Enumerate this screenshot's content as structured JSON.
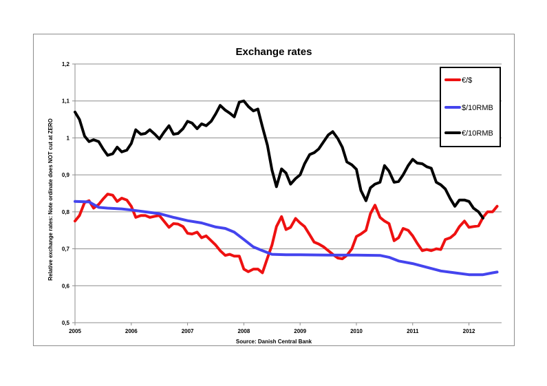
{
  "chart_data": {
    "type": "line",
    "title": "Exchange rates",
    "xlabel": "Source: Danish Central Bank",
    "ylabel": "Relative exchange rates: Note ordinate does NOT cut at ZERO",
    "xlim": [
      2005.0,
      2012.58
    ],
    "ylim": [
      0.5,
      1.2
    ],
    "grid": true,
    "legend_position": "top-right",
    "x_ticks": [
      2005,
      2006,
      2007,
      2008,
      2009,
      2010,
      2011,
      2012
    ],
    "x_tick_labels": [
      "2005",
      "2006",
      "2007",
      "2008",
      "2009",
      "2010",
      "2011",
      "2012"
    ],
    "y_ticks": [
      0.5,
      0.6,
      0.7,
      0.8,
      0.9,
      1.0,
      1.1,
      1.2
    ],
    "y_tick_labels": [
      "0,5",
      "0,6",
      "0,7",
      "0,8",
      "0,9",
      "1",
      "1,1",
      "1,2"
    ],
    "series": [
      {
        "name": "€/$",
        "color": "#ee1111",
        "points": [
          [
            2005.0,
            0.775
          ],
          [
            2005.08,
            0.79
          ],
          [
            2005.17,
            0.825
          ],
          [
            2005.25,
            0.83
          ],
          [
            2005.33,
            0.81
          ],
          [
            2005.42,
            0.82
          ],
          [
            2005.5,
            0.835
          ],
          [
            2005.58,
            0.848
          ],
          [
            2005.67,
            0.845
          ],
          [
            2005.75,
            0.828
          ],
          [
            2005.83,
            0.837
          ],
          [
            2005.92,
            0.832
          ],
          [
            2006.0,
            0.815
          ],
          [
            2006.08,
            0.785
          ],
          [
            2006.17,
            0.79
          ],
          [
            2006.25,
            0.79
          ],
          [
            2006.33,
            0.785
          ],
          [
            2006.42,
            0.788
          ],
          [
            2006.5,
            0.79
          ],
          [
            2006.58,
            0.775
          ],
          [
            2006.67,
            0.758
          ],
          [
            2006.75,
            0.768
          ],
          [
            2006.83,
            0.767
          ],
          [
            2006.92,
            0.76
          ],
          [
            2007.0,
            0.742
          ],
          [
            2007.08,
            0.74
          ],
          [
            2007.17,
            0.745
          ],
          [
            2007.25,
            0.73
          ],
          [
            2007.33,
            0.735
          ],
          [
            2007.42,
            0.722
          ],
          [
            2007.5,
            0.71
          ],
          [
            2007.58,
            0.695
          ],
          [
            2007.67,
            0.682
          ],
          [
            2007.75,
            0.685
          ],
          [
            2007.83,
            0.68
          ],
          [
            2007.92,
            0.68
          ],
          [
            2008.0,
            0.645
          ],
          [
            2008.08,
            0.638
          ],
          [
            2008.17,
            0.645
          ],
          [
            2008.25,
            0.645
          ],
          [
            2008.33,
            0.635
          ],
          [
            2008.42,
            0.675
          ],
          [
            2008.5,
            0.71
          ],
          [
            2008.58,
            0.76
          ],
          [
            2008.67,
            0.787
          ],
          [
            2008.75,
            0.752
          ],
          [
            2008.83,
            0.758
          ],
          [
            2008.92,
            0.782
          ],
          [
            2009.0,
            0.77
          ],
          [
            2009.08,
            0.76
          ],
          [
            2009.17,
            0.738
          ],
          [
            2009.25,
            0.718
          ],
          [
            2009.33,
            0.713
          ],
          [
            2009.42,
            0.705
          ],
          [
            2009.5,
            0.695
          ],
          [
            2009.58,
            0.685
          ],
          [
            2009.67,
            0.675
          ],
          [
            2009.75,
            0.673
          ],
          [
            2009.83,
            0.682
          ],
          [
            2009.92,
            0.7
          ],
          [
            2010.0,
            0.733
          ],
          [
            2010.08,
            0.74
          ],
          [
            2010.17,
            0.75
          ],
          [
            2010.25,
            0.795
          ],
          [
            2010.33,
            0.818
          ],
          [
            2010.42,
            0.785
          ],
          [
            2010.5,
            0.775
          ],
          [
            2010.58,
            0.768
          ],
          [
            2010.67,
            0.722
          ],
          [
            2010.75,
            0.73
          ],
          [
            2010.83,
            0.755
          ],
          [
            2010.92,
            0.75
          ],
          [
            2011.0,
            0.735
          ],
          [
            2011.08,
            0.715
          ],
          [
            2011.17,
            0.695
          ],
          [
            2011.25,
            0.698
          ],
          [
            2011.33,
            0.695
          ],
          [
            2011.42,
            0.7
          ],
          [
            2011.5,
            0.698
          ],
          [
            2011.58,
            0.725
          ],
          [
            2011.67,
            0.73
          ],
          [
            2011.75,
            0.74
          ],
          [
            2011.83,
            0.76
          ],
          [
            2011.92,
            0.775
          ],
          [
            2012.0,
            0.758
          ],
          [
            2012.08,
            0.76
          ],
          [
            2012.17,
            0.762
          ],
          [
            2012.25,
            0.785
          ],
          [
            2012.33,
            0.8
          ],
          [
            2012.42,
            0.8
          ],
          [
            2012.5,
            0.815
          ]
        ]
      },
      {
        "name": "$/10RMB",
        "color": "#4444ee",
        "points": [
          [
            2005.0,
            0.828
          ],
          [
            2005.25,
            0.827
          ],
          [
            2005.42,
            0.812
          ],
          [
            2005.58,
            0.81
          ],
          [
            2005.83,
            0.808
          ],
          [
            2006.0,
            0.805
          ],
          [
            2006.25,
            0.8
          ],
          [
            2006.5,
            0.795
          ],
          [
            2006.75,
            0.785
          ],
          [
            2007.0,
            0.776
          ],
          [
            2007.25,
            0.77
          ],
          [
            2007.5,
            0.759
          ],
          [
            2007.67,
            0.755
          ],
          [
            2007.83,
            0.745
          ],
          [
            2008.0,
            0.725
          ],
          [
            2008.17,
            0.705
          ],
          [
            2008.33,
            0.695
          ],
          [
            2008.5,
            0.685
          ],
          [
            2008.75,
            0.684
          ],
          [
            2009.0,
            0.684
          ],
          [
            2009.5,
            0.683
          ],
          [
            2010.0,
            0.683
          ],
          [
            2010.42,
            0.682
          ],
          [
            2010.58,
            0.677
          ],
          [
            2010.75,
            0.667
          ],
          [
            2011.0,
            0.66
          ],
          [
            2011.25,
            0.65
          ],
          [
            2011.5,
            0.64
          ],
          [
            2011.75,
            0.635
          ],
          [
            2012.0,
            0.63
          ],
          [
            2012.25,
            0.63
          ],
          [
            2012.42,
            0.635
          ],
          [
            2012.5,
            0.637
          ]
        ]
      },
      {
        "name": "€/10RMB",
        "color": "#000000",
        "points": [
          [
            2005.0,
            1.07
          ],
          [
            2005.08,
            1.05
          ],
          [
            2005.17,
            1.005
          ],
          [
            2005.25,
            0.99
          ],
          [
            2005.33,
            0.995
          ],
          [
            2005.42,
            0.99
          ],
          [
            2005.5,
            0.97
          ],
          [
            2005.58,
            0.953
          ],
          [
            2005.67,
            0.957
          ],
          [
            2005.75,
            0.975
          ],
          [
            2005.83,
            0.962
          ],
          [
            2005.92,
            0.967
          ],
          [
            2006.0,
            0.985
          ],
          [
            2006.08,
            1.022
          ],
          [
            2006.17,
            1.01
          ],
          [
            2006.25,
            1.012
          ],
          [
            2006.33,
            1.022
          ],
          [
            2006.42,
            1.01
          ],
          [
            2006.5,
            0.997
          ],
          [
            2006.58,
            1.015
          ],
          [
            2006.67,
            1.033
          ],
          [
            2006.75,
            1.01
          ],
          [
            2006.83,
            1.012
          ],
          [
            2006.92,
            1.025
          ],
          [
            2007.0,
            1.045
          ],
          [
            2007.08,
            1.04
          ],
          [
            2007.17,
            1.025
          ],
          [
            2007.25,
            1.038
          ],
          [
            2007.33,
            1.033
          ],
          [
            2007.42,
            1.045
          ],
          [
            2007.5,
            1.065
          ],
          [
            2007.58,
            1.088
          ],
          [
            2007.67,
            1.075
          ],
          [
            2007.75,
            1.067
          ],
          [
            2007.83,
            1.057
          ],
          [
            2007.92,
            1.097
          ],
          [
            2008.0,
            1.1
          ],
          [
            2008.08,
            1.085
          ],
          [
            2008.17,
            1.073
          ],
          [
            2008.25,
            1.078
          ],
          [
            2008.33,
            1.03
          ],
          [
            2008.42,
            0.98
          ],
          [
            2008.5,
            0.913
          ],
          [
            2008.58,
            0.868
          ],
          [
            2008.67,
            0.916
          ],
          [
            2008.75,
            0.905
          ],
          [
            2008.83,
            0.875
          ],
          [
            2008.92,
            0.89
          ],
          [
            2009.0,
            0.9
          ],
          [
            2009.08,
            0.93
          ],
          [
            2009.17,
            0.955
          ],
          [
            2009.25,
            0.96
          ],
          [
            2009.33,
            0.97
          ],
          [
            2009.42,
            0.99
          ],
          [
            2009.5,
            1.008
          ],
          [
            2009.58,
            1.017
          ],
          [
            2009.67,
            0.998
          ],
          [
            2009.75,
            0.975
          ],
          [
            2009.83,
            0.935
          ],
          [
            2009.92,
            0.927
          ],
          [
            2010.0,
            0.915
          ],
          [
            2010.08,
            0.858
          ],
          [
            2010.17,
            0.83
          ],
          [
            2010.25,
            0.865
          ],
          [
            2010.33,
            0.875
          ],
          [
            2010.42,
            0.88
          ],
          [
            2010.5,
            0.925
          ],
          [
            2010.58,
            0.91
          ],
          [
            2010.67,
            0.88
          ],
          [
            2010.75,
            0.882
          ],
          [
            2010.83,
            0.9
          ],
          [
            2010.92,
            0.925
          ],
          [
            2011.0,
            0.942
          ],
          [
            2011.08,
            0.932
          ],
          [
            2011.17,
            0.93
          ],
          [
            2011.25,
            0.922
          ],
          [
            2011.33,
            0.918
          ],
          [
            2011.42,
            0.88
          ],
          [
            2011.5,
            0.873
          ],
          [
            2011.58,
            0.862
          ],
          [
            2011.67,
            0.835
          ],
          [
            2011.75,
            0.815
          ],
          [
            2011.83,
            0.832
          ],
          [
            2011.92,
            0.832
          ],
          [
            2012.0,
            0.828
          ],
          [
            2012.08,
            0.81
          ],
          [
            2012.17,
            0.8
          ],
          [
            2012.25,
            0.783
          ]
        ]
      }
    ]
  }
}
